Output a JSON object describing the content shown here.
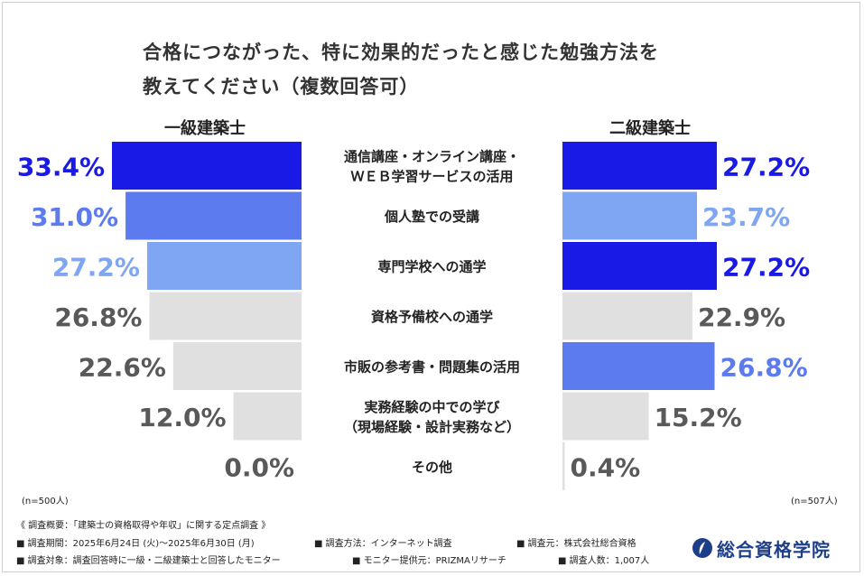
{
  "title_line1": "合格につながった、特に効果的だったと感じた勉強方法を",
  "title_line2": "教えてください（複数回答可）",
  "left_header": "一級建築士",
  "right_header": "二級建築士",
  "left_n": "(n=500人)",
  "right_n": "(n=507人)",
  "chart_data": {
    "type": "bar",
    "categories": [
      [
        "通信講座・オンライン講座・",
        "ＷＥＢ学習サービスの活用"
      ],
      [
        "個人塾での受講"
      ],
      [
        "専門学校への通学"
      ],
      [
        "資格予備校への通学"
      ],
      [
        "市販の参考書・問題集の活用"
      ],
      [
        "実務経験の中での学び",
        "（現場経験・設計実務など）"
      ],
      [
        "その他"
      ]
    ],
    "series": [
      {
        "name": "一級建築士",
        "values": [
          33.4,
          31.0,
          27.2,
          26.8,
          22.6,
          12.0,
          0.0
        ],
        "labels": [
          "33.4%",
          "31.0%",
          "27.2%",
          "26.8%",
          "22.6%",
          "12.0%",
          "0.0%"
        ],
        "colors": [
          "#1a1ae6",
          "#5b7bee",
          "#7fa6f2",
          "#e0e0e0",
          "#e0e0e0",
          "#e0e0e0",
          "#e0e0e0"
        ],
        "label_colors": [
          "#1a1ae6",
          "#5b7bee",
          "#7fa6f2",
          "#595959",
          "#595959",
          "#595959",
          "#595959"
        ]
      },
      {
        "name": "二級建築士",
        "values": [
          27.2,
          23.7,
          27.2,
          22.9,
          26.8,
          15.2,
          0.4
        ],
        "labels": [
          "27.2%",
          "23.7%",
          "27.2%",
          "22.9%",
          "26.8%",
          "15.2%",
          "0.4%"
        ],
        "colors": [
          "#1a1ae6",
          "#7fa6f2",
          "#1a1ae6",
          "#e0e0e0",
          "#5b7bee",
          "#e0e0e0",
          "#e0e0e0"
        ],
        "label_colors": [
          "#1a1ae6",
          "#7fa6f2",
          "#1a1ae6",
          "#595959",
          "#5b7bee",
          "#595959",
          "#595959"
        ]
      }
    ],
    "xlim": [
      0,
      33.4
    ],
    "orientation": "butterfly-horizontal",
    "grid": false,
    "legend": "none"
  },
  "footer": {
    "overview": "《 調査概要：「建築士の資格取得や年収」に関する定点調査 》",
    "period": "調査期間：2025年6月24日 (火)〜2025年6月30日 (月)",
    "method": "調査方法：インターネット調査",
    "source": "調査元：株式会社総合資格",
    "target": "調査対象：調査回答時に一級・二級建築士と回答したモニター",
    "provider": "モニター提供元：PRIZMAリサーチ",
    "count": "調査人数：1,007人"
  },
  "logo_text": "総合資格学院",
  "colors": {
    "dark_blue": "#1a1ae6",
    "mid_blue": "#5b7bee",
    "light_blue": "#7fa6f2",
    "gray": "#e0e0e0",
    "label_gray": "#595959"
  }
}
